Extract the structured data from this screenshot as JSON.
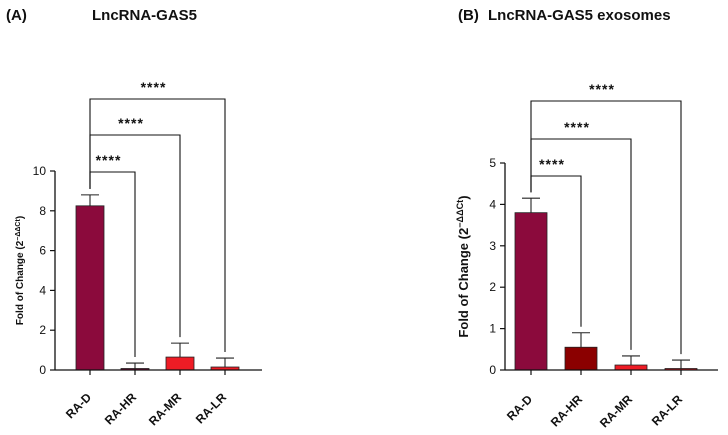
{
  "chart_data": [
    {
      "type": "bar",
      "panel": "(A)",
      "title": "LncRNA-GAS5",
      "xlabel": "",
      "ylabel": "Fold of Change (2",
      "ylabel_sup": "−ΔΔCt",
      "ylabel_close": ")",
      "ylim": [
        0,
        10
      ],
      "yticks": [
        0,
        2,
        4,
        6,
        8,
        10
      ],
      "categories": [
        "RA-D",
        "RA-HR",
        "RA-MR",
        "RA-LR"
      ],
      "values": [
        8.25,
        0.03,
        0.65,
        0.15
      ],
      "errors": [
        0.55,
        0.32,
        0.7,
        0.45
      ],
      "colors": [
        "#8b0a3c",
        "#8b0a3c",
        "#ee1c25",
        "#ee1c25"
      ],
      "significance": [
        {
          "from": "RA-D",
          "to": "RA-HR",
          "label": "****"
        },
        {
          "from": "RA-D",
          "to": "RA-MR",
          "label": "****"
        },
        {
          "from": "RA-D",
          "to": "RA-LR",
          "label": "****"
        }
      ]
    },
    {
      "type": "bar",
      "panel": "(B)",
      "title": "LncRNA-GAS5 exosomes",
      "xlabel": "",
      "ylabel": "Fold of Change (2",
      "ylabel_sup": "−ΔΔCt",
      "ylabel_close": ")",
      "ylim": [
        0,
        5
      ],
      "yticks": [
        0,
        1,
        2,
        3,
        4,
        5
      ],
      "categories": [
        "RA-D",
        "RA-HR",
        "RA-MR",
        "RA-LR"
      ],
      "values": [
        3.8,
        0.55,
        0.12,
        0.02
      ],
      "errors": [
        0.35,
        0.35,
        0.22,
        0.22
      ],
      "colors": [
        "#8b0a3c",
        "#8b0000",
        "#ee1c25",
        "#ee1c25"
      ],
      "significance": [
        {
          "from": "RA-D",
          "to": "RA-HR",
          "label": "****"
        },
        {
          "from": "RA-D",
          "to": "RA-MR",
          "label": "****"
        },
        {
          "from": "RA-D",
          "to": "RA-LR",
          "label": "****"
        }
      ]
    }
  ]
}
